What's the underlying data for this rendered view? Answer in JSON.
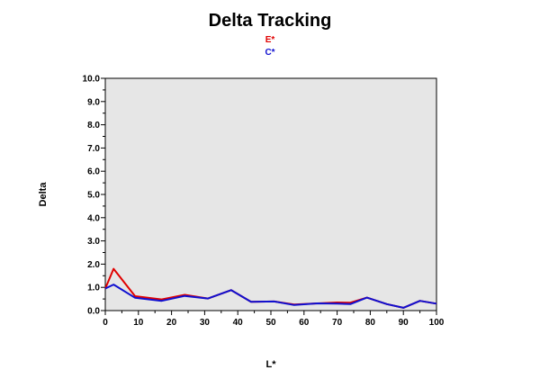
{
  "chart_data": {
    "type": "line",
    "title": "Delta Tracking",
    "xlabel": "L*",
    "ylabel": "Delta",
    "xlim": [
      0,
      100
    ],
    "ylim": [
      0,
      10
    ],
    "xticks": [
      0,
      10,
      20,
      30,
      40,
      50,
      60,
      70,
      80,
      90,
      100
    ],
    "yticks": [
      0,
      1,
      2,
      3,
      4,
      5,
      6,
      7,
      8,
      9,
      10
    ],
    "plot_background": "#e6e6e6",
    "grid": false,
    "legend_position": "top-center",
    "series": [
      {
        "name": "E*",
        "color": "#e00000",
        "x": [
          0,
          2.5,
          9,
          17,
          24,
          31,
          38,
          44,
          51,
          57,
          64,
          70,
          74,
          79,
          85,
          90,
          95,
          100
        ],
        "y": [
          0.95,
          1.8,
          0.62,
          0.48,
          0.68,
          0.52,
          0.88,
          0.38,
          0.39,
          0.26,
          0.31,
          0.35,
          0.34,
          0.56,
          0.28,
          0.12,
          0.42,
          0.3
        ]
      },
      {
        "name": "C*",
        "color": "#1010d0",
        "x": [
          0,
          2.5,
          9,
          17,
          24,
          31,
          38,
          44,
          51,
          57,
          64,
          70,
          74,
          79,
          85,
          90,
          95,
          100
        ],
        "y": [
          0.95,
          1.12,
          0.55,
          0.42,
          0.63,
          0.52,
          0.88,
          0.38,
          0.39,
          0.24,
          0.31,
          0.3,
          0.28,
          0.56,
          0.28,
          0.12,
          0.42,
          0.3
        ]
      }
    ]
  }
}
